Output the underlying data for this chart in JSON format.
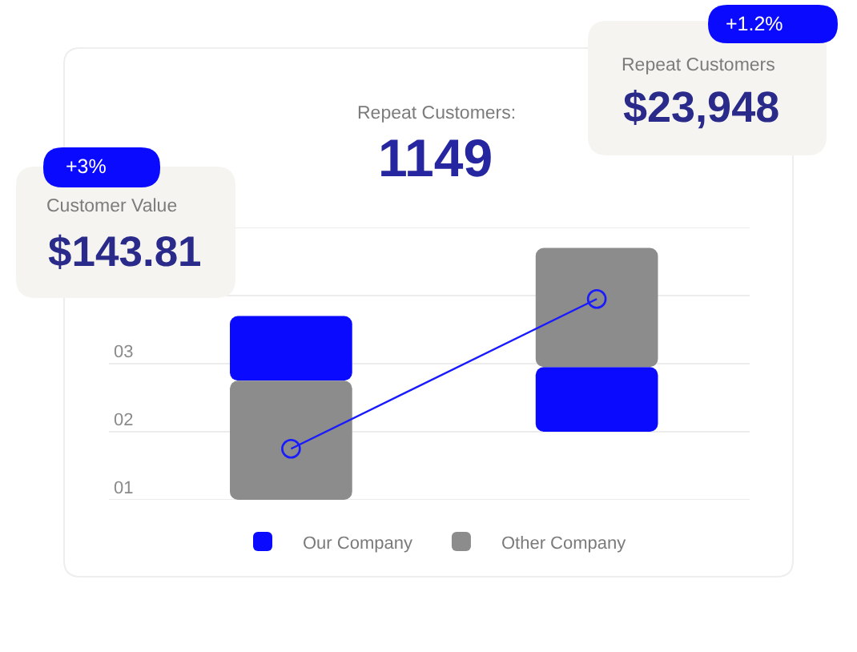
{
  "chart_data": {
    "type": "bar",
    "categories": [
      null,
      null
    ],
    "series": [
      {
        "name": "Our Company",
        "color": "#0a0aff",
        "base": [
          2.75,
          2
        ],
        "values": [
          0.95,
          0.95
        ]
      },
      {
        "name": "Other Company",
        "color": "#8c8c8c",
        "base": [
          1,
          2.95
        ],
        "values": [
          1.75,
          1.75
        ]
      },
      {
        "type": "line",
        "color": "#1a1aff",
        "marker": "circle",
        "values": [
          1.75,
          3.95
        ]
      }
    ],
    "ylim": [
      1,
      5
    ],
    "yticks": [
      {
        "value": 1,
        "label": "01"
      },
      {
        "value": 2,
        "label": "02"
      },
      {
        "value": 3,
        "label": "03"
      },
      {
        "value": 4,
        "label": null
      },
      {
        "value": 5,
        "label": null
      }
    ],
    "grid": "y",
    "legend": "bottom",
    "annotations": [
      "Repeat Customers:",
      "1149",
      "+3%",
      "Customer Value",
      "$143.81",
      "+1.2%",
      "Repeat Customers",
      "$23,948"
    ]
  }
}
